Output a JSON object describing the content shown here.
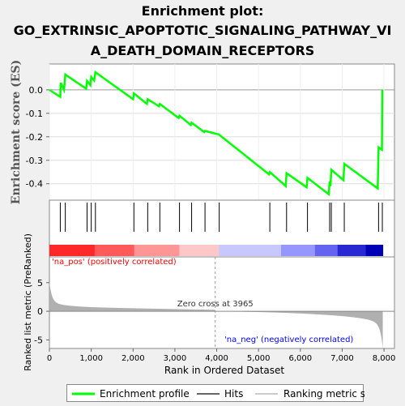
{
  "title_lines": [
    "Enrichment plot:",
    "GO_EXTRINSIC_APOPTOTIC_SIGNALING_PATHWAY_VI",
    "A_DEATH_DOMAIN_RECEPTORS"
  ],
  "chart_data": {
    "type": "line",
    "top_panel": {
      "ylabel": "Enrichment score (ES)",
      "ylim": [
        -0.47,
        0.11
      ],
      "yticks": [
        "0.0",
        "-0.1",
        "-0.2",
        "-0.3",
        "-0.4"
      ],
      "ytick_values": [
        0.0,
        -0.1,
        -0.2,
        -0.3,
        -0.4
      ],
      "series": [
        {
          "name": "Enrichment profile",
          "color": "#00ff00",
          "x": [
            0,
            260,
            270,
            350,
            380,
            880,
            900,
            980,
            1000,
            1070,
            1100,
            2000,
            2020,
            2330,
            2350,
            2620,
            2640,
            3090,
            3110,
            3380,
            3400,
            3700,
            3720,
            4050,
            5250,
            5270,
            5650,
            5670,
            6150,
            6170,
            6680,
            6700,
            6720,
            6740,
            7030,
            7050,
            7850,
            7870,
            7950,
            7960
          ],
          "y": [
            0.0,
            -0.03,
            0.03,
            0.0,
            0.065,
            0.005,
            0.038,
            0.02,
            0.055,
            0.04,
            0.075,
            -0.04,
            -0.015,
            -0.06,
            -0.04,
            -0.07,
            -0.06,
            -0.12,
            -0.11,
            -0.15,
            -0.14,
            -0.18,
            -0.175,
            -0.19,
            -0.36,
            -0.35,
            -0.41,
            -0.355,
            -0.415,
            -0.375,
            -0.445,
            -0.39,
            -0.41,
            -0.34,
            -0.385,
            -0.315,
            -0.42,
            -0.245,
            -0.255,
            0.0
          ]
        }
      ]
    },
    "hits": {
      "name": "Hits",
      "x": [
        260,
        380,
        900,
        1000,
        1100,
        2020,
        2350,
        2640,
        3110,
        3400,
        3720,
        4060,
        5270,
        5670,
        6170,
        6700,
        6740,
        7050,
        7870,
        7960
      ]
    },
    "ranking": {
      "name": "Ranking metric scores",
      "ylabel": "Ranked list metric (PreRanked)",
      "ylim": [
        -6.5,
        9.5
      ],
      "yticks": [
        "5",
        "0",
        "-5"
      ],
      "ytick_values": [
        5,
        0,
        -5
      ],
      "zero_cross_label": "Zero cross at 3965",
      "zero_cross": 3965,
      "pos_label": "'na_pos' (positively correlated)",
      "neg_label": "'na_neg' (negatively correlated)"
    },
    "xlabel": "Rank in Ordered Dataset",
    "xlim": [
      0,
      8250
    ],
    "xticks": [
      "0",
      "1,000",
      "2,000",
      "3,000",
      "4,000",
      "5,000",
      "6,000",
      "7,000",
      "8,000"
    ],
    "xtick_values": [
      0,
      1000,
      2000,
      3000,
      4000,
      5000,
      6000,
      7000,
      8000
    ],
    "n_genes": 7970,
    "colors": {
      "profile": "#00ff00",
      "pos_label": "#ff0000",
      "neg_label": "#0000ff",
      "metric_fill": "#b0b0b0"
    }
  },
  "legend": [
    {
      "label": "Enrichment profile",
      "color": "#00ff00"
    },
    {
      "label": "Hits",
      "color": "#666666"
    },
    {
      "label": "Ranking metric scores",
      "color": "#cccccc"
    }
  ]
}
